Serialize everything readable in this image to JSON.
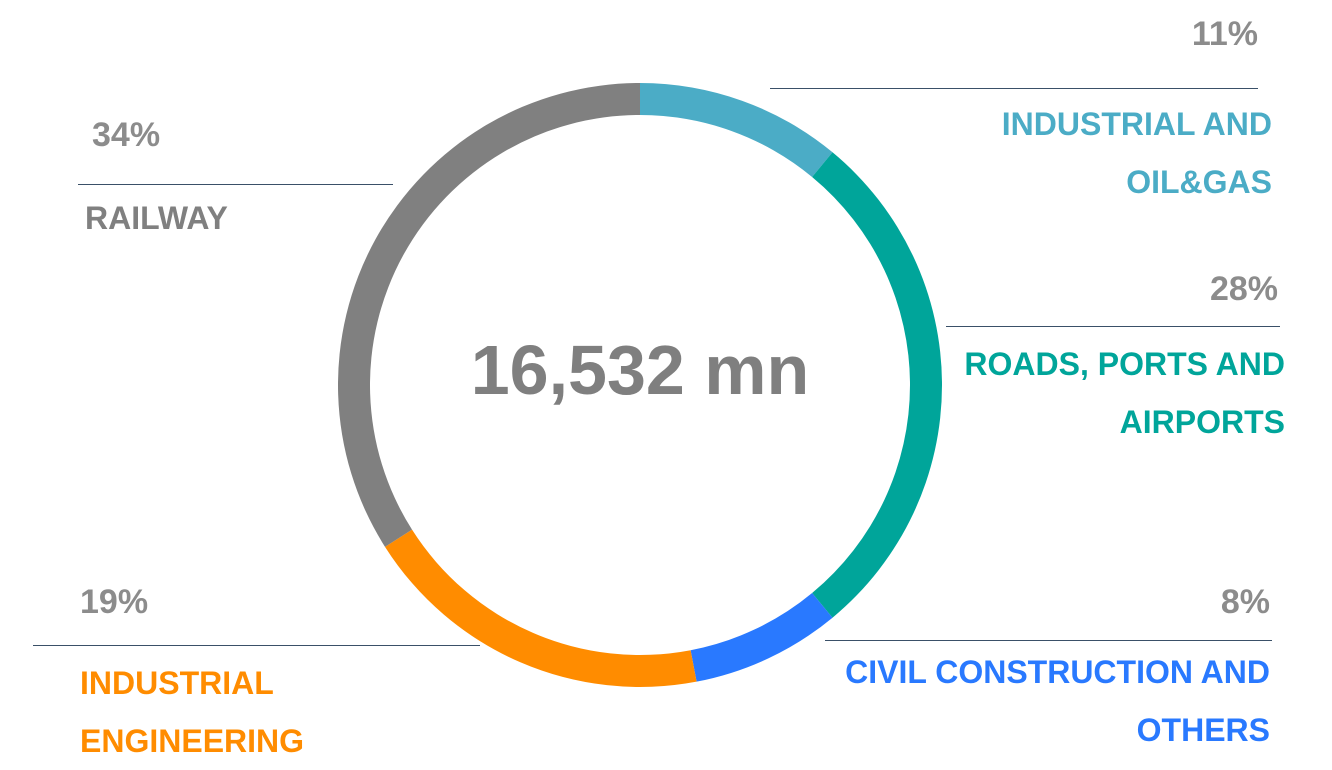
{
  "chart_data": {
    "type": "donut",
    "center_label": "16,532 mn",
    "categories": [
      "INDUSTRIAL AND OIL&GAS",
      "ROADS, PORTS AND AIRPORTS",
      "CIVIL CONSTRUCTION AND OTHERS",
      "INDUSTRIAL ENGINEERING",
      "RAILWAY"
    ],
    "values": [
      11,
      28,
      8,
      19,
      34
    ],
    "value_labels": [
      "11%",
      "28%",
      "8%",
      "19%",
      "34%"
    ],
    "colors": [
      "#4bacc6",
      "#00a59a",
      "#2979ff",
      "#ff8c00",
      "#808080"
    ]
  }
}
